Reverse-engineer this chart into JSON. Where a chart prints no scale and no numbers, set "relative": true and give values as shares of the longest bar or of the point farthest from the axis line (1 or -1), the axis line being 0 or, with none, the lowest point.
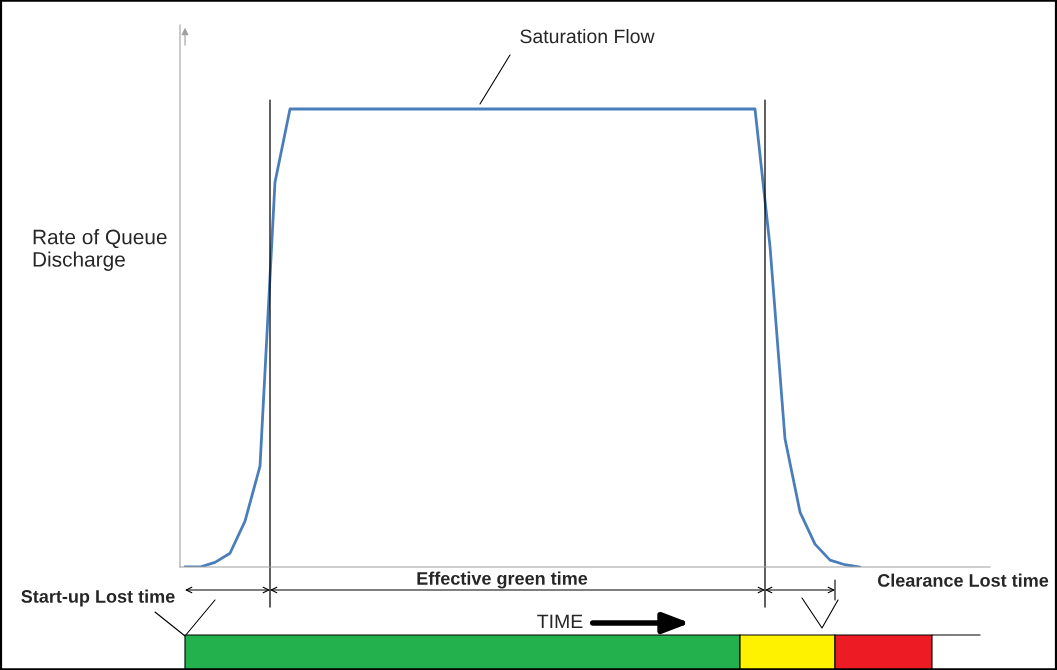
{
  "chart_data": {
    "type": "line",
    "relative": true,
    "ylabel": "Rate of Queue Discharge",
    "categories": [
      null,
      null,
      null,
      null,
      null,
      null,
      null,
      null,
      null,
      null,
      null,
      null,
      null,
      null,
      null,
      null,
      null,
      null,
      null,
      null,
      null,
      null,
      null,
      null,
      null,
      null,
      null,
      null,
      null,
      null,
      null,
      null,
      null,
      null,
      null,
      null,
      null,
      null,
      null,
      null,
      null,
      null,
      null,
      null,
      null,
      null
    ],
    "series": [
      {
        "color": "#4a7ebb",
        "values": [
          0,
          0,
          0.01,
          0.03,
          0.1,
          0.22,
          0.84,
          1,
          1,
          1,
          1,
          1,
          1,
          1,
          1,
          1,
          1,
          1,
          1,
          1,
          1,
          1,
          1,
          1,
          1,
          1,
          1,
          1,
          1,
          1,
          1,
          1,
          1,
          1,
          1,
          1,
          1,
          1,
          1,
          0.7,
          0.28,
          0.12,
          0.05,
          0.015,
          0.005,
          0
        ]
      }
    ],
    "annotations": [
      "Saturation Flow",
      "Effective green time",
      "Start-up Lost time",
      "Clearance Lost time",
      "TIME"
    ],
    "marker": "none",
    "line_style": "solid"
  }
}
